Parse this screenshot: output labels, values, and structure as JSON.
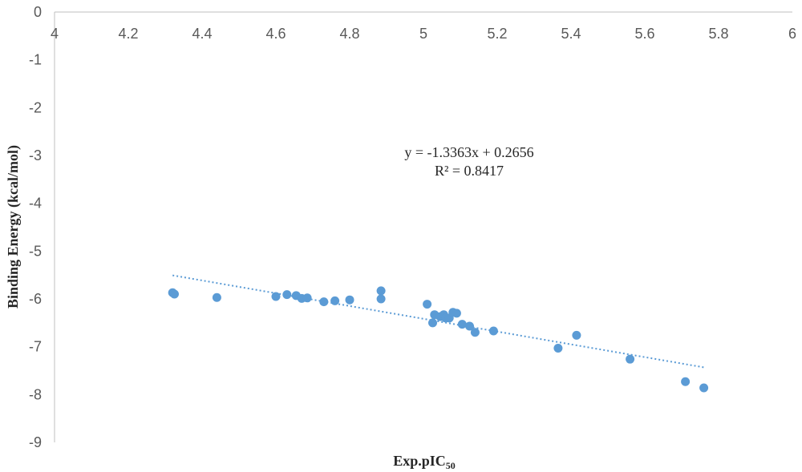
{
  "chart_data": {
    "type": "scatter",
    "xlabel": "Exp.pIC",
    "xlabel_sub": "50",
    "ylabel": "Binding Energy (kcal/mol)",
    "xlim": [
      4,
      6
    ],
    "ylim": [
      -9,
      0
    ],
    "x_ticks": [
      "4",
      "4.2",
      "4.4",
      "4.6",
      "4.8",
      "5",
      "5.2",
      "5.4",
      "5.6",
      "5.8",
      "6"
    ],
    "y_ticks": [
      "0",
      "-1",
      "-2",
      "-3",
      "-4",
      "-5",
      "-6",
      "-7",
      "-8",
      "-9"
    ],
    "x_axis_position": "top",
    "grid": false,
    "legend": "none",
    "series": [
      {
        "color": "#5b9bd5",
        "points": [
          {
            "x": 4.32,
            "y": -5.87
          },
          {
            "x": 4.325,
            "y": -5.9
          },
          {
            "x": 4.44,
            "y": -5.97
          },
          {
            "x": 4.6,
            "y": -5.95
          },
          {
            "x": 4.63,
            "y": -5.91
          },
          {
            "x": 4.655,
            "y": -5.93
          },
          {
            "x": 4.67,
            "y": -5.99
          },
          {
            "x": 4.685,
            "y": -5.98
          },
          {
            "x": 4.73,
            "y": -6.06
          },
          {
            "x": 4.76,
            "y": -6.04
          },
          {
            "x": 4.8,
            "y": -6.02
          },
          {
            "x": 4.885,
            "y": -5.83
          },
          {
            "x": 4.885,
            "y": -6.0
          },
          {
            "x": 5.01,
            "y": -6.11
          },
          {
            "x": 5.025,
            "y": -6.5
          },
          {
            "x": 5.03,
            "y": -6.33
          },
          {
            "x": 5.045,
            "y": -6.37
          },
          {
            "x": 5.055,
            "y": -6.33
          },
          {
            "x": 5.06,
            "y": -6.4
          },
          {
            "x": 5.07,
            "y": -6.4
          },
          {
            "x": 5.08,
            "y": -6.28
          },
          {
            "x": 5.09,
            "y": -6.3
          },
          {
            "x": 5.105,
            "y": -6.53
          },
          {
            "x": 5.125,
            "y": -6.57
          },
          {
            "x": 5.14,
            "y": -6.7
          },
          {
            "x": 5.19,
            "y": -6.67
          },
          {
            "x": 5.365,
            "y": -7.03
          },
          {
            "x": 5.415,
            "y": -6.76
          },
          {
            "x": 5.56,
            "y": -7.26
          },
          {
            "x": 5.71,
            "y": -7.73
          },
          {
            "x": 5.76,
            "y": -7.86
          }
        ]
      }
    ],
    "trendline": {
      "style": "dotted",
      "color": "#5b9bd5",
      "slope": -1.3363,
      "intercept": 0.2656,
      "x_start": 4.32,
      "x_end": 5.76,
      "equation": "y = -1.3363x + 0.2656",
      "r_squared": "R² = 0.8417"
    }
  }
}
